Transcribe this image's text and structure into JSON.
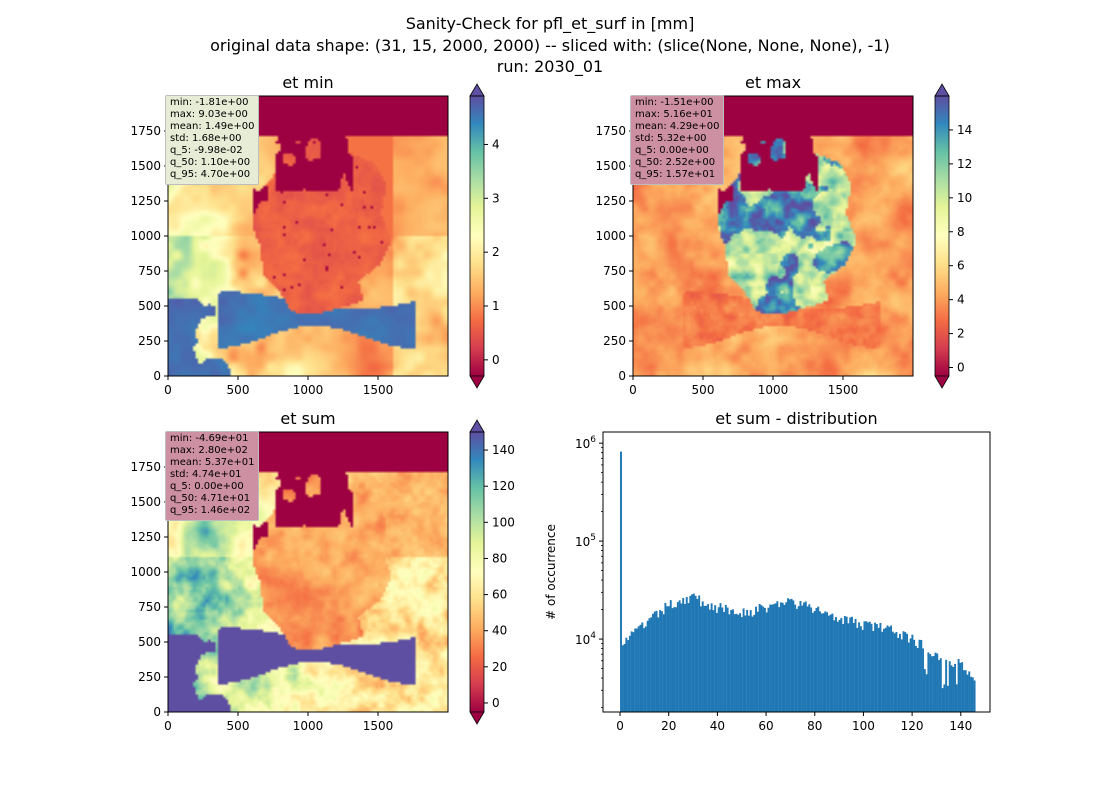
{
  "suptitle": {
    "line1": "Sanity-Check for pfl_et_surf in [mm]",
    "line2": "original data shape: (31, 15, 2000, 2000) -- sliced with: (slice(None, None, None), -1)",
    "line3": "run: 2030_01"
  },
  "colors": {
    "bar": "#1f77b4",
    "spectral": [
      "#9e0142",
      "#d53e4f",
      "#f46d43",
      "#fdae61",
      "#fee08b",
      "#ffffbf",
      "#e6f598",
      "#abdda4",
      "#66c2a5",
      "#3288bd",
      "#5e4fa2"
    ],
    "cbar_under": "#9e0142",
    "cbar_over": "#5e4fa2"
  },
  "chart_data": [
    {
      "type": "heatmap",
      "title": "et min",
      "colormap": "Spectral",
      "xlim": [
        0,
        2000
      ],
      "ylim": [
        0,
        2000
      ],
      "xticks": [
        0,
        500,
        1000,
        1500
      ],
      "yticks": [
        0,
        250,
        500,
        750,
        1000,
        1250,
        1500,
        1750
      ],
      "vmin": -0.3,
      "vmax": 4.9,
      "cbar_ticks": [
        0,
        1,
        2,
        3,
        4
      ],
      "colorbar_extend": "both",
      "stats_box_color": "#e6ecd6",
      "stats": [
        "min: -1.81e+00",
        "max: 9.03e+00",
        "mean: 1.49e+00",
        "std: 1.68e+00",
        "q_5: -9.98e-02",
        "q_50: 1.10e+00",
        "q_95: 4.70e+00"
      ]
    },
    {
      "type": "heatmap",
      "title": "et max",
      "colormap": "Spectral",
      "xlim": [
        0,
        2000
      ],
      "ylim": [
        0,
        2000
      ],
      "xticks": [
        0,
        500,
        1000,
        1500
      ],
      "yticks": [
        0,
        250,
        500,
        750,
        1000,
        1250,
        1500,
        1750
      ],
      "vmin": -0.5,
      "vmax": 16,
      "cbar_ticks": [
        0,
        2,
        4,
        6,
        8,
        10,
        12,
        14
      ],
      "colorbar_extend": "both",
      "stats_box_color": "#cd8fa2",
      "stats": [
        "min: -1.51e+00",
        "max: 5.16e+01",
        "mean: 4.29e+00",
        "std: 5.32e+00",
        "q_5: 0.00e+00",
        "q_50: 2.52e+00",
        "q_95: 1.57e+01"
      ]
    },
    {
      "type": "heatmap",
      "title": "et sum",
      "colormap": "Spectral",
      "xlim": [
        0,
        2000
      ],
      "ylim": [
        0,
        2000
      ],
      "xticks": [
        0,
        500,
        1000,
        1500
      ],
      "yticks": [
        0,
        250,
        500,
        750,
        1000,
        1250,
        1500,
        1750
      ],
      "vmin": -5,
      "vmax": 150,
      "cbar_ticks": [
        0,
        20,
        40,
        60,
        80,
        100,
        120,
        140
      ],
      "colorbar_extend": "both",
      "stats_box_color": "#cd8fa2",
      "stats": [
        "min: -4.69e+01",
        "max: 2.80e+02",
        "mean: 5.37e+01",
        "std: 4.74e+01",
        "q_5: 0.00e+00",
        "q_50: 4.71e+01",
        "q_95: 1.46e+02"
      ]
    },
    {
      "type": "bar",
      "title": "et sum - distribution",
      "ylabel": "# of occurrence",
      "yscale": "log",
      "xlim": [
        -7,
        152
      ],
      "ylim": [
        1800,
        1300000
      ],
      "xticks": [
        0,
        20,
        40,
        60,
        80,
        100,
        120,
        140
      ],
      "yticks": [
        {
          "value": 10000,
          "base": "10",
          "exp": "4"
        },
        {
          "value": 100000,
          "base": "10",
          "exp": "5"
        },
        {
          "value": 1000000,
          "base": "10",
          "exp": "6"
        }
      ],
      "bin_range": [
        0,
        146
      ],
      "spike": {
        "x": 0,
        "count": 820000
      },
      "envelope": [
        [
          0,
          9000
        ],
        [
          5,
          11000
        ],
        [
          10,
          14000
        ],
        [
          15,
          17500
        ],
        [
          20,
          22000
        ],
        [
          25,
          25000
        ],
        [
          30,
          27000
        ],
        [
          35,
          23000
        ],
        [
          40,
          21000
        ],
        [
          45,
          19500
        ],
        [
          50,
          19000
        ],
        [
          55,
          19500
        ],
        [
          60,
          21000
        ],
        [
          65,
          23000
        ],
        [
          70,
          24000
        ],
        [
          75,
          22000
        ],
        [
          80,
          20000
        ],
        [
          85,
          18500
        ],
        [
          90,
          17000
        ],
        [
          95,
          15000
        ],
        [
          100,
          14000
        ],
        [
          105,
          13500
        ],
        [
          110,
          12500
        ],
        [
          115,
          11500
        ],
        [
          120,
          10000
        ],
        [
          125,
          8500
        ],
        [
          130,
          7000
        ],
        [
          135,
          6000
        ],
        [
          140,
          5500
        ],
        [
          146,
          4200
        ]
      ]
    }
  ]
}
